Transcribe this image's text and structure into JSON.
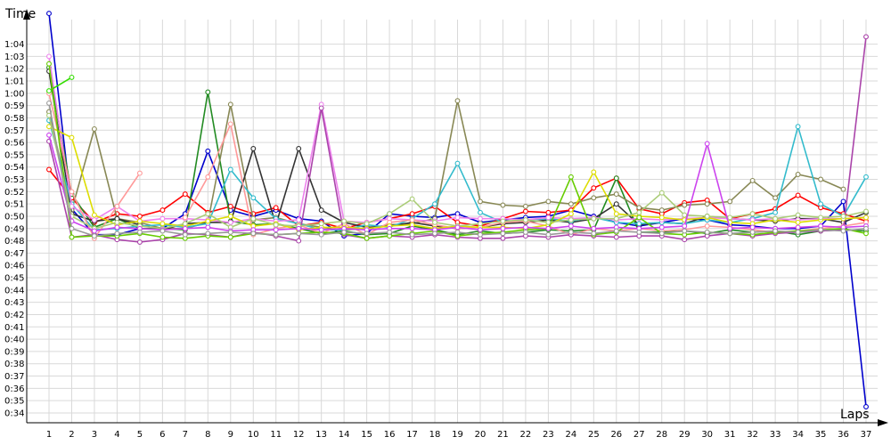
{
  "chart_data": {
    "type": "line",
    "ylabel": "Time",
    "xlabel": "Laps",
    "x": [
      1,
      2,
      3,
      4,
      5,
      6,
      7,
      8,
      9,
      10,
      11,
      12,
      13,
      14,
      15,
      16,
      17,
      18,
      19,
      20,
      21,
      22,
      23,
      24,
      25,
      26,
      27,
      28,
      29,
      30,
      31,
      32,
      33,
      34,
      35,
      36,
      37
    ],
    "ylim": [
      33.2,
      66.0
    ],
    "grid": true,
    "y_tick_labels": [
      "0:34",
      "0:35",
      "0:36",
      "0:37",
      "0:38",
      "0:39",
      "0:40",
      "0:41",
      "0:42",
      "0:43",
      "0:44",
      "0:45",
      "0:46",
      "0:47",
      "0:48",
      "0:49",
      "0:50",
      "0:51",
      "0:52",
      "0:53",
      "0:54",
      "0:55",
      "0:56",
      "0:57",
      "0:58",
      "0:59",
      "1:00",
      "1:01",
      "1:02",
      "1:03",
      "1:04"
    ],
    "y_tick_values": [
      34,
      35,
      36,
      37,
      38,
      39,
      40,
      41,
      42,
      43,
      44,
      45,
      46,
      47,
      48,
      49,
      50,
      51,
      52,
      53,
      54,
      55,
      56,
      57,
      58,
      59,
      60,
      61,
      62,
      63,
      64
    ],
    "series": [
      {
        "color": "#0000cc",
        "values": [
          66.5,
          50.6,
          48.5,
          48.5,
          49.0,
          49.0,
          50.2,
          55.3,
          50.5,
          50.0,
          50.5,
          49.8,
          49.6,
          48.4,
          48.6,
          50.2,
          50.0,
          49.9,
          50.2,
          49.5,
          49.7,
          49.9,
          50.0,
          50.5,
          50.0,
          49.5,
          49.2,
          49.5,
          49.8,
          49.7,
          49.3,
          49.2,
          49.0,
          49.0,
          49.2,
          51.2,
          34.5
        ]
      },
      {
        "color": "#ff0000",
        "values": [
          53.8,
          51.5,
          49.5,
          50.2,
          50.0,
          50.5,
          51.8,
          50.3,
          50.8,
          50.2,
          50.7,
          49.2,
          49.5,
          49.0,
          49.5,
          49.8,
          50.2,
          50.8,
          49.5,
          49.2,
          49.8,
          50.4,
          50.3,
          50.5,
          52.3,
          53.1,
          50.6,
          50.2,
          51.1,
          51.3,
          49.8,
          50.2,
          50.6,
          51.7,
          50.7,
          50.2,
          49.6
        ]
      },
      {
        "color": "#228b22",
        "values": [
          62.1,
          51.8,
          49.1,
          49.8,
          49.0,
          49.0,
          48.9,
          60.1,
          49.6,
          49.3,
          49.4,
          49.0,
          48.6,
          48.8,
          48.5,
          48.6,
          49.2,
          48.9,
          48.5,
          48.8,
          48.6,
          48.7,
          48.9,
          48.8,
          48.9,
          53.1,
          48.7,
          48.7,
          48.8,
          48.6,
          48.9,
          48.7,
          48.8,
          48.5,
          48.8,
          48.9,
          48.8
        ]
      },
      {
        "color": "#888855",
        "values": [
          58.5,
          50.5,
          57.1,
          49.8,
          49.5,
          49.0,
          49.0,
          49.5,
          59.1,
          49.7,
          49.9,
          49.4,
          49.1,
          48.9,
          49.0,
          49.3,
          49.4,
          49.8,
          59.4,
          51.2,
          50.9,
          50.8,
          51.2,
          51.0,
          51.5,
          51.8,
          50.7,
          50.5,
          50.9,
          51.0,
          51.2,
          52.9,
          51.5,
          53.4,
          53.0,
          52.2,
          null
        ]
      },
      {
        "color": "#333333",
        "values": [
          61.8,
          50.2,
          49.6,
          49.8,
          49.3,
          48.9,
          49.4,
          49.5,
          49.5,
          55.5,
          49.3,
          55.5,
          50.5,
          49.5,
          49.1,
          49.2,
          49.5,
          49.2,
          49.0,
          49.1,
          49.4,
          49.5,
          49.7,
          49.5,
          49.8,
          51.0,
          49.3,
          49.5,
          49.4,
          50.0,
          49.8,
          49.7,
          49.6,
          49.8,
          49.8,
          49.5,
          50.3
        ]
      },
      {
        "color": "#33bbcc",
        "values": [
          57.8,
          51.0,
          48.9,
          49.0,
          49.2,
          49.3,
          49.1,
          49.4,
          53.8,
          51.5,
          49.8,
          49.4,
          48.9,
          48.9,
          49.3,
          49.1,
          49.8,
          51.0,
          54.3,
          50.3,
          49.5,
          49.7,
          49.8,
          49.6,
          49.9,
          49.5,
          49.4,
          49.5,
          49.4,
          49.7,
          49.5,
          49.8,
          50.3,
          57.3,
          51.0,
          50.0,
          53.2
        ]
      },
      {
        "color": "#ee82ee",
        "values": [
          63.0,
          50.8,
          49.7,
          50.8,
          49.6,
          49.8,
          49.8,
          49.7,
          49.5,
          49.8,
          49.6,
          49.7,
          59.1,
          49.6,
          49.5,
          49.8,
          49.7,
          49.6,
          49.9,
          49.8,
          49.8,
          49.7,
          49.9,
          49.8,
          49.9,
          49.7,
          49.8,
          49.7,
          49.8,
          49.9,
          49.8,
          49.7,
          49.8,
          49.7,
          49.8,
          49.8,
          49.9
        ]
      },
      {
        "color": "#ff9999",
        "values": [
          60.0,
          52.0,
          48.2,
          50.8,
          53.5,
          null,
          49.9,
          53.2,
          57.5,
          48.5,
          49.0,
          49.3,
          48.6,
          49.4,
          48.5,
          49.5,
          49.7,
          49.3,
          49.0,
          49.1,
          49.5,
          49.6,
          49.2,
          48.5,
          49.0,
          48.8,
          49.0,
          48.8,
          48.9,
          49.2,
          49.1,
          48.9,
          48.7,
          48.8,
          49.0,
          49.2,
          49.5
        ]
      },
      {
        "color": "#aa44aa",
        "values": [
          56.1,
          48.3,
          48.5,
          48.1,
          47.9,
          48.1,
          48.6,
          48.5,
          48.3,
          48.7,
          48.4,
          48.0,
          58.8,
          48.5,
          48.2,
          48.4,
          48.3,
          48.5,
          48.3,
          48.2,
          48.2,
          48.4,
          48.3,
          48.5,
          48.4,
          48.3,
          48.4,
          48.4,
          48.1,
          48.4,
          48.6,
          48.4,
          48.6,
          48.7,
          48.8,
          48.9,
          64.6
        ]
      },
      {
        "color": "#dddd00",
        "values": [
          57.3,
          56.4,
          50.1,
          49.3,
          49.6,
          49.4,
          49.2,
          49.6,
          50.0,
          49.2,
          49.4,
          48.9,
          49.1,
          49.1,
          49.0,
          49.2,
          49.3,
          49.0,
          49.2,
          49.1,
          49.1,
          49.0,
          49.3,
          50.2,
          53.6,
          50.2,
          50.0,
          49.9,
          49.7,
          49.9,
          49.5,
          49.4,
          49.7,
          49.5,
          49.7,
          49.8,
          49.9
        ]
      },
      {
        "color": "#33dd00",
        "values": [
          60.2,
          61.3,
          null,
          null,
          null,
          null,
          null,
          null,
          null,
          null,
          null,
          null,
          null,
          null,
          null,
          null,
          null,
          null,
          null,
          null,
          null,
          null,
          null,
          null,
          null,
          null,
          null,
          null,
          null,
          null,
          null,
          null,
          null,
          null,
          null,
          null,
          null
        ]
      },
      {
        "color": "#66cc00",
        "values": [
          62.4,
          48.3,
          48.4,
          48.4,
          48.6,
          48.3,
          48.2,
          48.4,
          48.3,
          48.6,
          48.5,
          48.6,
          48.7,
          48.6,
          48.2,
          48.4,
          48.6,
          48.8,
          48.4,
          48.6,
          48.7,
          48.9,
          49.0,
          53.2,
          48.5,
          48.7,
          49.9,
          48.6,
          48.5,
          48.7,
          48.6,
          48.5,
          48.7,
          48.8,
          48.9,
          49.0,
          48.6
        ]
      },
      {
        "color": "#aacc77",
        "values": [
          58.2,
          50.0,
          49.0,
          49.5,
          49.2,
          49.0,
          49.4,
          50.2,
          49.1,
          49.8,
          49.3,
          49.2,
          49.4,
          49.6,
          49.4,
          50.2,
          51.4,
          49.5,
          49.2,
          49.4,
          49.6,
          49.7,
          49.5,
          49.7,
          49.8,
          49.8,
          50.3,
          51.9,
          50.1,
          50.0,
          49.9,
          50.2,
          49.8,
          50.1,
          49.9,
          50.0,
          50.4
        ]
      },
      {
        "color": "#cc44ee",
        "values": [
          56.6,
          49.6,
          48.8,
          49.1,
          49.0,
          48.9,
          49.0,
          49.1,
          48.8,
          48.9,
          48.9,
          49.0,
          48.9,
          49.0,
          48.9,
          49.0,
          49.0,
          48.9,
          49.1,
          48.9,
          49.0,
          49.1,
          49.0,
          49.2,
          49.0,
          49.1,
          49.0,
          49.1,
          49.2,
          55.9,
          49.0,
          49.1,
          49.0,
          49.1,
          49.2,
          49.1,
          49.2
        ]
      },
      {
        "color": "#999999",
        "values": [
          59.2,
          49.0,
          48.4,
          48.6,
          48.7,
          48.8,
          48.5,
          48.6,
          48.7,
          48.6,
          48.5,
          48.6,
          48.5,
          48.7,
          48.6,
          48.7,
          48.5,
          48.6,
          48.7,
          48.5,
          48.6,
          48.7,
          48.5,
          48.7,
          48.6,
          48.8,
          48.7,
          48.6,
          48.8,
          48.7,
          48.6,
          48.7,
          48.8,
          48.7,
          48.9,
          48.8,
          49.0
        ]
      }
    ]
  }
}
